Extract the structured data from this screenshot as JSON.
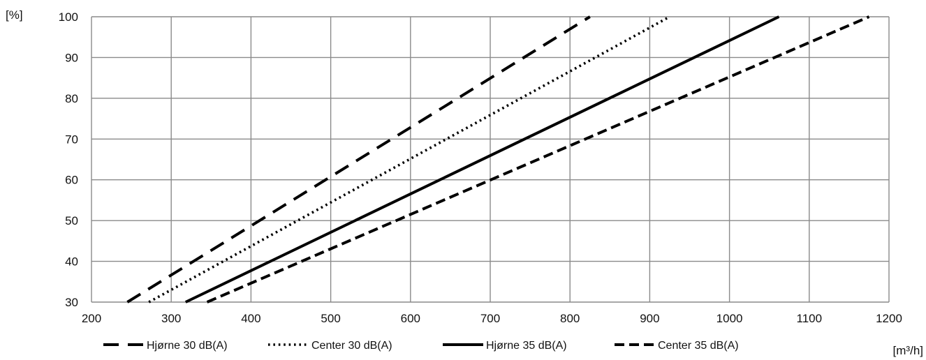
{
  "chart_data": {
    "type": "line",
    "title": "",
    "xlabel": "[m³/h]",
    "ylabel": "[%]",
    "xlim": [
      200,
      1200
    ],
    "ylim": [
      30,
      100
    ],
    "xticks": [
      200,
      300,
      400,
      500,
      600,
      700,
      800,
      900,
      1000,
      1100,
      1200
    ],
    "yticks": [
      30,
      40,
      50,
      60,
      70,
      80,
      90,
      100
    ],
    "grid": true,
    "legend_position": "bottom",
    "series": [
      {
        "name": "Hjørne 30 dB(A)",
        "style": "long-dash",
        "color": "#000000",
        "x": [
          245,
          825
        ],
        "y": [
          30,
          100
        ]
      },
      {
        "name": "Center 30 dB(A)",
        "style": "dotted",
        "color": "#000000",
        "x": [
          272,
          925
        ],
        "y": [
          30,
          100
        ]
      },
      {
        "name": "Hjørne 35 dB(A)",
        "style": "solid",
        "color": "#000000",
        "x": [
          318,
          1062
        ],
        "y": [
          30,
          100
        ]
      },
      {
        "name": "Center 35 dB(A)",
        "style": "short-dash",
        "color": "#000000",
        "x": [
          345,
          1175
        ],
        "y": [
          30,
          100
        ]
      }
    ]
  }
}
